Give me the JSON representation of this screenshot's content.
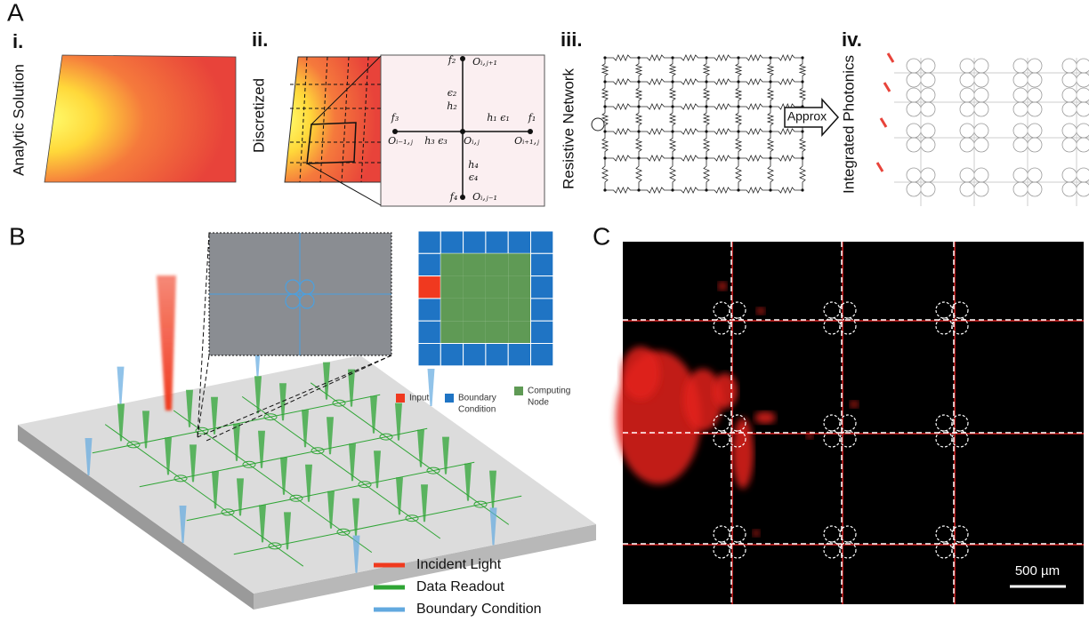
{
  "panel_a": {
    "label": "A",
    "subpanels": [
      {
        "numeral": "i.",
        "title": "Analytic Solution"
      },
      {
        "numeral": "ii.",
        "title": "Discretized"
      },
      {
        "numeral": "iii.",
        "title": "Resistive Network"
      },
      {
        "numeral": "iv.",
        "title": "Integrated Photonics"
      }
    ],
    "stencil": {
      "f2": "f₂",
      "o_up": "Oᵢ,ⱼ₊₁",
      "e2": "ϵ₂",
      "h2": "h₂",
      "f3": "f₃",
      "h1e1": "h₁ ϵ₁",
      "f1": "f₁",
      "o_left": "Oᵢ₋₁,ⱼ",
      "h3e3": "h₃ ϵ₃",
      "o_center": "Oᵢ,ⱼ",
      "o_right": "Oᵢ₊₁,ⱼ",
      "h4": "h₄",
      "e4": "ϵ₄",
      "f4": "f₄",
      "o_down": "Oᵢ,ⱼ₋₁"
    },
    "approx": "Approx"
  },
  "panel_b": {
    "label": "B",
    "grid_legend": [
      {
        "text": [
          "Input"
        ],
        "color": "#f0391f"
      },
      {
        "text": [
          "Boundary",
          "Condition"
        ],
        "color": "#1f74c4"
      },
      {
        "text": [
          "Computing",
          "Node"
        ],
        "color": "#5f9a55"
      }
    ],
    "legend": [
      {
        "text": "Incident Light",
        "color": "#f03a1e"
      },
      {
        "text": "Data Readout",
        "color": "#2fa535"
      },
      {
        "text": "Boundary Condition",
        "color": "#62a9df"
      }
    ]
  },
  "panel_c": {
    "label": "C",
    "scale_bar": "500 µm"
  }
}
